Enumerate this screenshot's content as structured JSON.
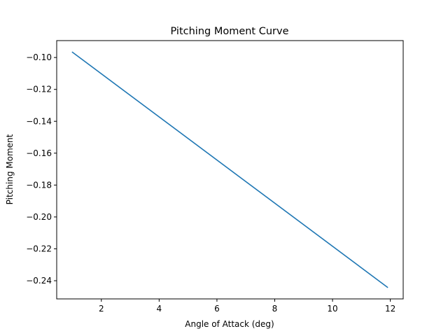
{
  "chart_data": {
    "type": "line",
    "title": "Pitching Moment Curve",
    "xlabel": "Angle of Attack (deg)",
    "ylabel": "Pitching Moment",
    "xlim": [
      0.455,
      12.445
    ],
    "ylim": [
      -0.2514,
      -0.0894
    ],
    "xticks": [
      2,
      4,
      6,
      8,
      10,
      12
    ],
    "yticks": [
      -0.24,
      -0.22,
      -0.2,
      -0.18,
      -0.16,
      -0.14,
      -0.12,
      -0.1
    ],
    "xtick_labels": [
      "2",
      "4",
      "6",
      "8",
      "10",
      "12"
    ],
    "ytick_labels": [
      "−0.24",
      "−0.22",
      "−0.20",
      "−0.18",
      "−0.16",
      "−0.14",
      "−0.12",
      "−0.10"
    ],
    "grid": false,
    "series": [
      {
        "color": "#1f77b4",
        "x": [
          1.0,
          11.9
        ],
        "y": [
          -0.0967,
          -0.2441
        ]
      }
    ]
  }
}
